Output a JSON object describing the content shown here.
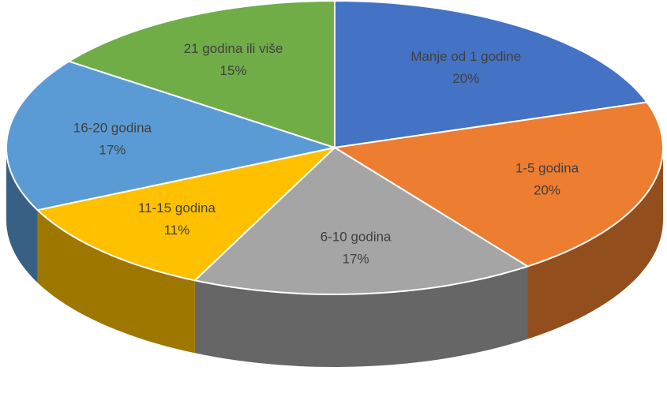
{
  "chart_data": {
    "type": "pie",
    "categories": [
      "Manje od 1 godine",
      "1-5 godina",
      "6-10 godina",
      "11-15 godina",
      "16-20 godina",
      "21 godina ili više"
    ],
    "values": [
      20,
      20,
      17,
      11,
      17,
      15
    ],
    "value_labels": [
      "20%",
      "20%",
      "17%",
      "11%",
      "17%",
      "15%"
    ],
    "colors": [
      "#4472c4",
      "#ed7d31",
      "#a5a5a5",
      "#ffc000",
      "#5b9bd5",
      "#70ad47"
    ]
  }
}
